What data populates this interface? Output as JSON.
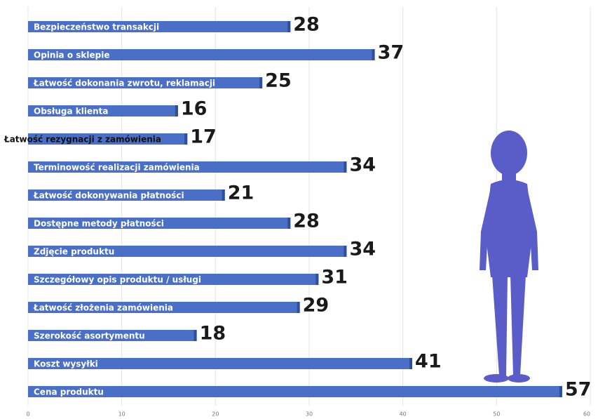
{
  "chart_data": {
    "type": "bar",
    "orientation": "horizontal",
    "categories": [
      "Bezpieczeństwo transakcji",
      "Opinia o sklepie",
      "Łatwość dokonania zwrotu, reklamacji",
      "Obsługa klienta",
      "Łatwość rezygnacji z zamówienia",
      "Terminowość realizacji zamówienia",
      "Łatwość dokonywania płatności",
      "Dostępne metody płatności",
      "Zdjęcie produktu",
      "Szczegółowy opis produktu / usługi",
      "Łatwość złożenia zamówienia",
      "Szerokość asortymentu",
      "Koszt wysyłki",
      "Cena produktu"
    ],
    "values": [
      28,
      37,
      25,
      16,
      17,
      34,
      21,
      28,
      34,
      31,
      29,
      18,
      41,
      57
    ],
    "color": "#4a6fc7",
    "xlim": [
      0,
      60
    ],
    "xticks": [
      0,
      10,
      20,
      30,
      40,
      50,
      60
    ],
    "grid": true
  }
}
